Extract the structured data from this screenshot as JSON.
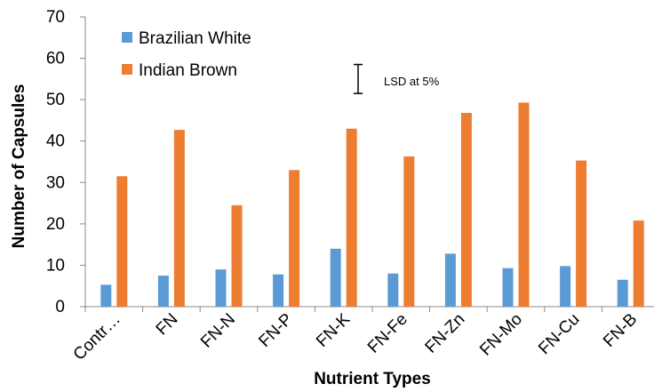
{
  "chart_data": {
    "type": "bar",
    "xlabel": "Nutrient Types",
    "ylabel": "Number of Capsules",
    "ylim": [
      0,
      70
    ],
    "yticks": [
      0,
      10,
      20,
      30,
      40,
      50,
      60,
      70
    ],
    "grid": false,
    "legend_position": "top-left",
    "categories": [
      "Contr…",
      "FN",
      "FN-N",
      "FN-P",
      "FN-K",
      "FN-Fe",
      "FN-Zn",
      "FN-Mo",
      "FN-Cu",
      "FN-B"
    ],
    "series": [
      {
        "name": "Brazilian White",
        "color": "#5B9BD5",
        "values": [
          5.3,
          7.5,
          9.0,
          7.8,
          14.0,
          8.0,
          12.8,
          9.3,
          9.8,
          6.5
        ]
      },
      {
        "name": "Indian Brown",
        "color": "#ED7D31",
        "values": [
          31.5,
          42.7,
          24.5,
          33.0,
          43.0,
          36.3,
          46.8,
          49.3,
          35.3,
          20.8
        ]
      }
    ],
    "annotation": {
      "text": "LSD at 5%",
      "error_bar_low": 51.5,
      "error_bar_high": 58.5
    }
  }
}
